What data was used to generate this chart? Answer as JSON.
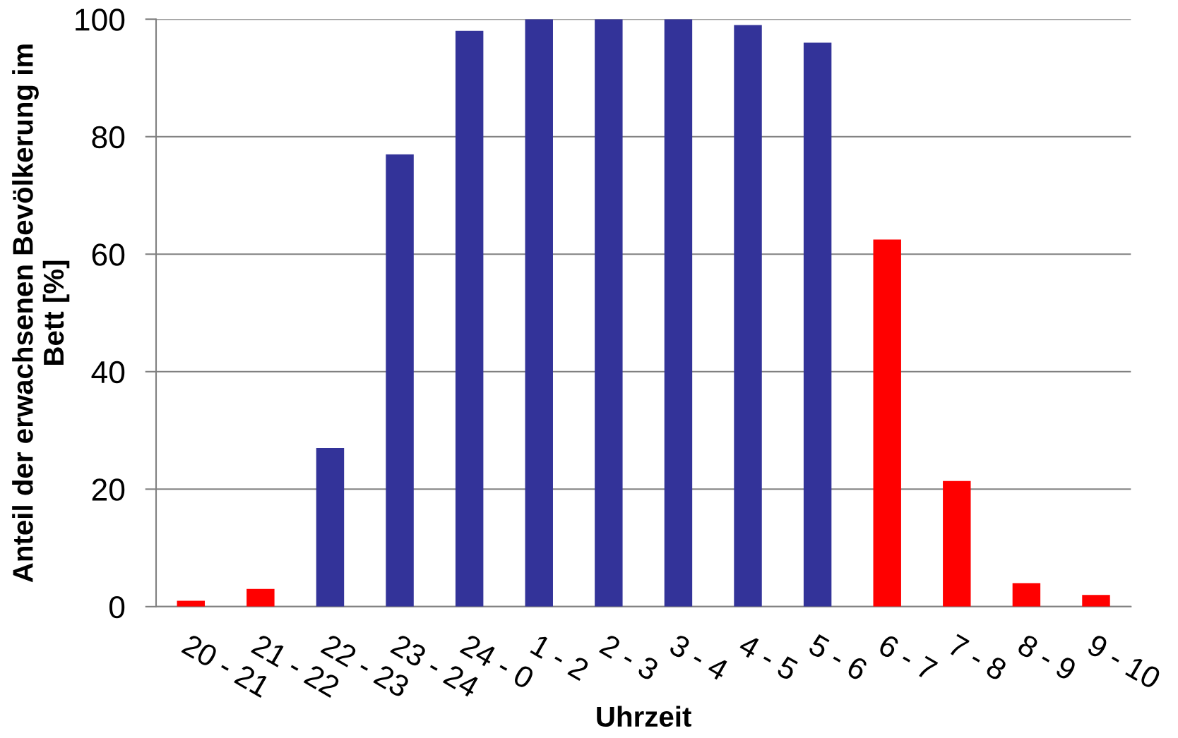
{
  "chart_data": {
    "type": "bar",
    "xlabel": "Uhrzeit",
    "ylabel": "Anteil der erwachsenen Bevölkerung im\nBett [%]",
    "categories": [
      "20 - 21",
      "21 - 22",
      "22 - 23",
      "23 - 24",
      "24 - 0",
      "1 - 2",
      "2 - 3",
      "3 - 4",
      "4 - 5",
      "5 - 6",
      "6 - 7",
      "7 - 8",
      "8 - 9",
      "9 - 10"
    ],
    "values": [
      1,
      3,
      27,
      77,
      98,
      100,
      100,
      100,
      99,
      96,
      62.5,
      21.4,
      4,
      2
    ],
    "colors": [
      "#ff0000",
      "#ff0000",
      "#333399",
      "#333399",
      "#333399",
      "#333399",
      "#333399",
      "#333399",
      "#333399",
      "#333399",
      "#ff0000",
      "#ff0000",
      "#ff0000",
      "#ff0000"
    ],
    "ylim": [
      0,
      100
    ],
    "yticks": [
      0,
      20,
      40,
      60,
      80,
      100
    ],
    "grid": "y"
  }
}
